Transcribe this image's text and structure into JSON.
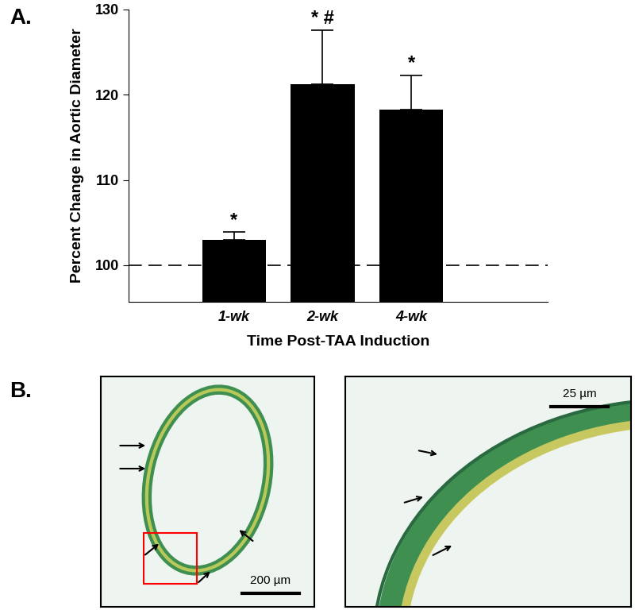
{
  "chart_data": {
    "type": "bar",
    "panel_label": "A.",
    "x_label": "Time Post-TAA Induction",
    "y_label": "Percent Change in Aortic Diameter",
    "categories": [
      "1-wk",
      "2-wk",
      "4-wk"
    ],
    "values": [
      103.0,
      121.2,
      118.3
    ],
    "errors": [
      0.9,
      6.4,
      4.0
    ],
    "annotations": [
      "*",
      "* #",
      "*"
    ],
    "baseline": 100,
    "color": "#000000",
    "ylim": [
      95.7,
      130
    ],
    "yticks": [
      100,
      110,
      120,
      130
    ],
    "grid": false
  },
  "micrographs": {
    "panel_label": "B.",
    "panels": [
      {
        "scale_bar": "200 µm"
      },
      {
        "scale_bar": "25 µm"
      }
    ]
  }
}
